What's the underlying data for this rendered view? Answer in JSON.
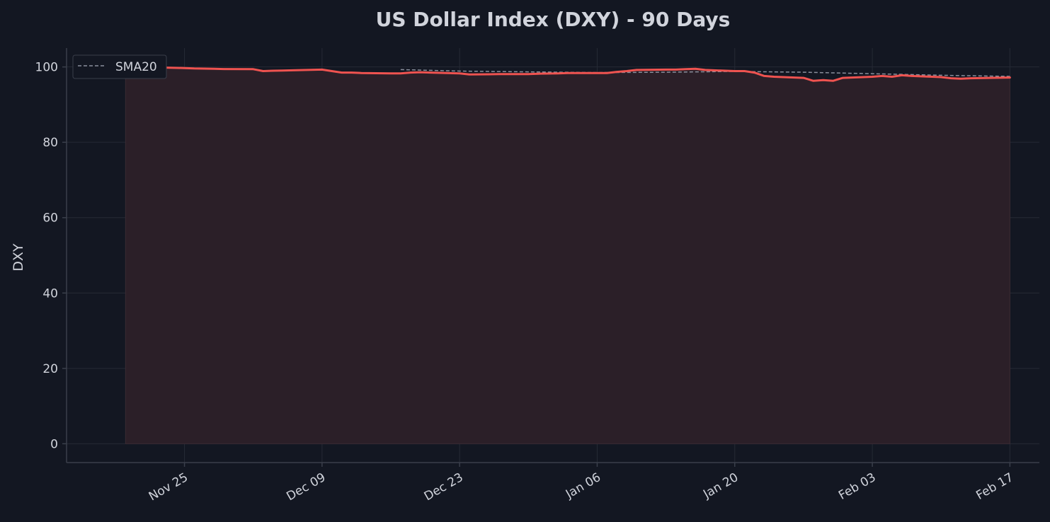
{
  "colors": {
    "background": "#131722",
    "price_line": "#ef5350",
    "fill": "#2b1f28",
    "sma_line": "#8a8f9c",
    "grid": "#262a35",
    "axis": "#3a3f4b",
    "text": "#d1d4dc"
  },
  "chart_data": {
    "type": "line",
    "title": "US Dollar Index (DXY) - 90 Days",
    "xlabel": "",
    "ylabel": "DXY",
    "xlim": [
      "2024-11-13",
      "2025-02-20"
    ],
    "ylim": [
      -5,
      105
    ],
    "yticks": [
      0,
      20,
      40,
      60,
      80,
      100
    ],
    "xtick_labels": [
      "Nov 25",
      "Dec 09",
      "Dec 23",
      "Jan 06",
      "Jan 20",
      "Feb 03",
      "Feb 17"
    ],
    "xtick_dates": [
      "2024-11-25",
      "2024-12-09",
      "2024-12-23",
      "2025-01-06",
      "2025-01-20",
      "2025-02-03",
      "2025-02-17"
    ],
    "grid": true,
    "legend": {
      "position": "top-left",
      "entries": [
        "SMA20"
      ]
    },
    "series": [
      {
        "style": "solid-filled",
        "color": "#ef5350",
        "x": [
          "2024-11-19",
          "2024-11-20",
          "2024-11-21",
          "2024-11-22",
          "2024-11-25",
          "2024-11-26",
          "2024-11-27",
          "2024-11-28",
          "2024-11-29",
          "2024-12-02",
          "2024-12-03",
          "2024-12-04",
          "2024-12-05",
          "2024-12-06",
          "2024-12-09",
          "2024-12-10",
          "2024-12-11",
          "2024-12-12",
          "2024-12-13",
          "2024-12-16",
          "2024-12-17",
          "2024-12-18",
          "2024-12-19",
          "2024-12-20",
          "2024-12-23",
          "2024-12-24",
          "2024-12-26",
          "2024-12-27",
          "2024-12-30",
          "2024-12-31",
          "2025-01-02",
          "2025-01-03",
          "2025-01-06",
          "2025-01-07",
          "2025-01-08",
          "2025-01-09",
          "2025-01-10",
          "2025-01-13",
          "2025-01-14",
          "2025-01-15",
          "2025-01-16",
          "2025-01-17",
          "2025-01-20",
          "2025-01-21",
          "2025-01-22",
          "2025-01-23",
          "2025-01-24",
          "2025-01-27",
          "2025-01-28",
          "2025-01-29",
          "2025-01-30",
          "2025-01-31",
          "2025-02-03",
          "2025-02-04",
          "2025-02-05",
          "2025-02-06",
          "2025-02-07",
          "2025-02-10",
          "2025-02-11",
          "2025-02-12",
          "2025-02-13",
          "2025-02-14",
          "2025-02-17"
        ],
        "values": [
          100.0,
          100.1,
          100.2,
          99.9,
          99.7,
          99.6,
          99.55,
          99.5,
          99.45,
          99.4,
          98.9,
          99.0,
          99.05,
          99.1,
          99.3,
          98.9,
          98.5,
          98.5,
          98.4,
          98.3,
          98.3,
          98.5,
          98.6,
          98.5,
          98.3,
          98.0,
          98.05,
          98.1,
          98.1,
          98.2,
          98.3,
          98.4,
          98.4,
          98.4,
          98.7,
          98.9,
          99.2,
          99.3,
          99.3,
          99.4,
          99.5,
          99.2,
          98.9,
          98.9,
          98.5,
          97.6,
          97.4,
          97.1,
          96.3,
          96.5,
          96.3,
          97.1,
          97.4,
          97.6,
          97.4,
          97.8,
          97.6,
          97.3,
          97.0,
          96.9,
          97.0,
          97.05,
          97.2
        ]
      },
      {
        "name": "SMA20",
        "style": "dashed",
        "color": "#8a8f9c",
        "x": [
          "2024-12-17",
          "2024-12-23",
          "2024-12-30",
          "2025-01-06",
          "2025-01-13",
          "2025-01-20",
          "2025-01-27",
          "2025-02-03",
          "2025-02-10",
          "2025-02-17"
        ],
        "values": [
          99.3,
          98.9,
          98.7,
          98.5,
          98.6,
          98.8,
          98.6,
          98.2,
          97.8,
          97.5
        ]
      }
    ]
  }
}
